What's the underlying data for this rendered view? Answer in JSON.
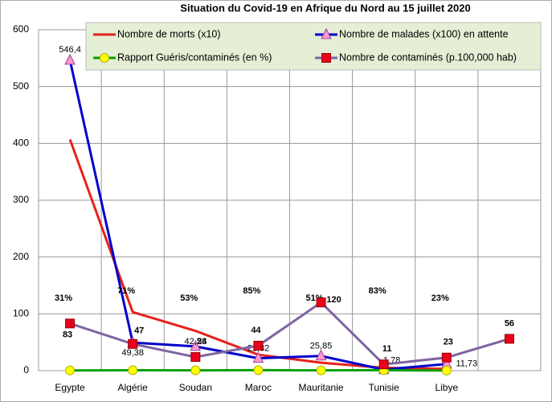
{
  "chart_data": {
    "type": "line",
    "title": "Situation du Covid-19 en Afrique du Nord au 15 juillet 2020",
    "categories": [
      "Egypte",
      "Algérie",
      "Soudan",
      "Maroc",
      "Mauritanie",
      "Tunisie",
      "Libye",
      null
    ],
    "ylim": [
      0,
      600
    ],
    "yticks": [
      0,
      100,
      200,
      300,
      400,
      500,
      600
    ],
    "grid": true,
    "legend": "top",
    "series": [
      {
        "name": "Nombre de morts (x10)",
        "color": "#e8201c",
        "values": [
          407,
          103,
          70,
          28,
          14,
          5,
          3,
          null
        ]
      },
      {
        "name": "Nombre de malades (x100) en attente",
        "color": "#0000cc",
        "marker": "triangle",
        "marker_color": "#ff99cc",
        "values": [
          546.4,
          49.38,
          42.58,
          21.82,
          25.85,
          1.78,
          11.73,
          null
        ],
        "value_labels": [
          "546,4",
          "49,38",
          "42,58",
          "21,82",
          "25,85",
          "1,78",
          "11,73",
          null
        ],
        "label_color": "#c00000"
      },
      {
        "name": "Rapport Guéris/contaminés (en %)",
        "color": "#00a000",
        "marker": "circle",
        "marker_color": "#ffff00",
        "values": [
          0.31,
          0.71,
          0.53,
          0.85,
          0.51,
          0.83,
          0.23,
          null
        ],
        "value_labels": [
          "31%",
          "71%",
          "53%",
          "85%",
          "51%",
          "83%",
          "23%",
          null
        ],
        "label_color": "#000000"
      },
      {
        "name": "Nombre de contaminés (p.100,000 hab)",
        "color": "#8064a2",
        "marker": "square",
        "marker_color": "#e8001c",
        "values": [
          83,
          47,
          24,
          44,
          120,
          11,
          23,
          56
        ],
        "label_color": "#1f2fa0"
      }
    ]
  }
}
